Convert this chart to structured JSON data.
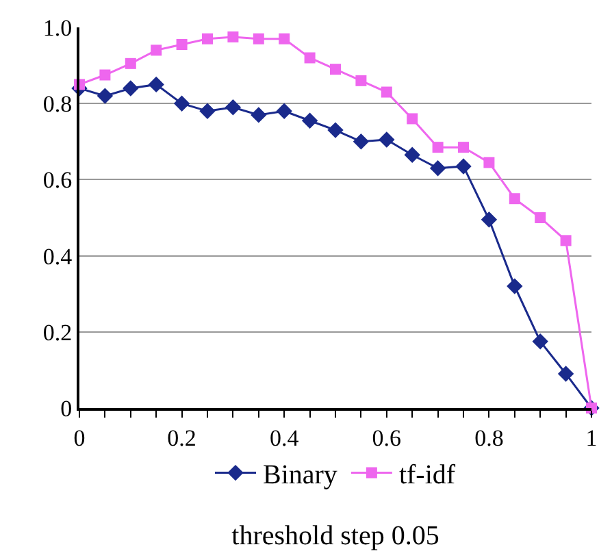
{
  "chart_data": {
    "type": "line",
    "xlabel": "threshold step 0.05",
    "x": [
      0,
      0.05,
      0.1,
      0.15,
      0.2,
      0.25,
      0.3,
      0.35,
      0.4,
      0.45,
      0.5,
      0.55,
      0.6,
      0.65,
      0.7,
      0.75,
      0.8,
      0.85,
      0.9,
      0.95,
      1.0
    ],
    "series": [
      {
        "name": "Binary",
        "color": "#1a2a8c",
        "marker": "diamond",
        "values": [
          0.84,
          0.82,
          0.84,
          0.85,
          0.8,
          0.78,
          0.79,
          0.77,
          0.78,
          0.755,
          0.73,
          0.7,
          0.705,
          0.665,
          0.63,
          0.635,
          0.495,
          0.32,
          0.175,
          0.09,
          0.0
        ]
      },
      {
        "name": "tf-idf",
        "color": "#ee66ee",
        "marker": "square",
        "values": [
          0.85,
          0.875,
          0.905,
          0.94,
          0.955,
          0.97,
          0.975,
          0.97,
          0.97,
          0.92,
          0.89,
          0.86,
          0.83,
          0.76,
          0.685,
          0.685,
          0.645,
          0.55,
          0.5,
          0.44,
          0.0
        ]
      }
    ],
    "xlim": [
      0,
      1
    ],
    "ylim": [
      0,
      1
    ],
    "xticks": [
      0,
      {
        "value": 0.05,
        "label": null
      },
      {
        "value": 0.1,
        "label": null
      },
      {
        "value": 0.15,
        "label": null
      },
      0.2,
      {
        "value": 0.25,
        "label": null
      },
      {
        "value": 0.3,
        "label": null
      },
      {
        "value": 0.35,
        "label": null
      },
      0.4,
      {
        "value": 0.45,
        "label": null
      },
      {
        "value": 0.5,
        "label": null
      },
      {
        "value": 0.55,
        "label": null
      },
      0.6,
      {
        "value": 0.65,
        "label": null
      },
      {
        "value": 0.7,
        "label": null
      },
      {
        "value": 0.75,
        "label": null
      },
      0.8,
      {
        "value": 0.85,
        "label": null
      },
      {
        "value": 0.9,
        "label": null
      },
      {
        "value": 0.95,
        "label": null
      },
      1
    ],
    "yticks": [
      0,
      0.2,
      0.4,
      0.6,
      0.8,
      {
        "value": 1.0,
        "label": "1.0"
      }
    ],
    "grid": "y",
    "legend": "bottom",
    "line_style": "solid"
  }
}
